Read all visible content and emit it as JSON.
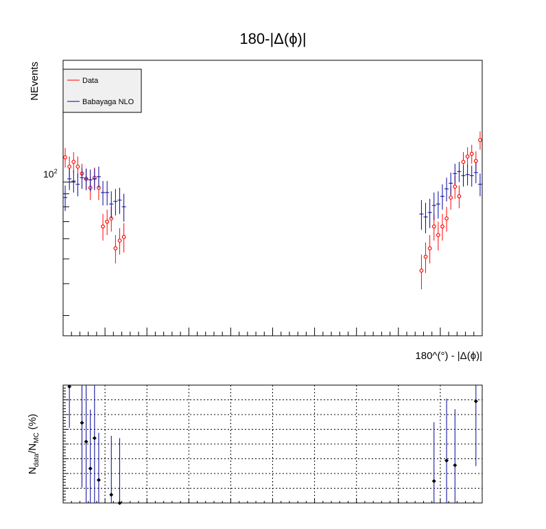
{
  "chart_data": [
    {
      "type": "scatter",
      "title": "180-|Δ(ϕ)|",
      "xlabel": "180^(°) - |Δ(ϕ)|",
      "ylabel": "NEvents",
      "xlim": [
        -5,
        5
      ],
      "ylim": [
        25,
        300
      ],
      "yscale": "log",
      "x_ticks": [
        "-5",
        "-4",
        "-3",
        "-2",
        "-1",
        "0",
        "1",
        "2",
        "3",
        "4",
        "5"
      ],
      "y_tick_label": "10",
      "y_tick_label_exp": "2",
      "grid": false,
      "legend_position": "top-left",
      "series": [
        {
          "name": "Data",
          "color": "#ff0000",
          "marker": "open-circle",
          "x": [
            -4.95,
            -4.85,
            -4.75,
            -4.65,
            -4.55,
            -4.45,
            -4.35,
            -4.25,
            -4.15,
            -4.05,
            -3.95,
            -3.85,
            -3.75,
            -3.65,
            -3.55,
            3.55,
            3.65,
            3.75,
            3.85,
            3.95,
            4.05,
            4.15,
            4.25,
            4.35,
            4.45,
            4.55,
            4.65,
            4.75,
            4.85,
            4.95
          ],
          "y": [
            125,
            115,
            120,
            115,
            108,
            103,
            95,
            104,
            95,
            67,
            70,
            72,
            55,
            59,
            61,
            45,
            51,
            55,
            67,
            62,
            67,
            72,
            87,
            96,
            88,
            120,
            126,
            129,
            121,
            146
          ],
          "yerr": [
            11,
            11,
            11,
            11,
            10,
            10,
            10,
            10,
            10,
            8,
            8,
            8,
            7,
            7,
            8,
            7,
            7,
            7,
            8,
            8,
            8,
            8,
            9,
            10,
            9,
            11,
            11,
            11,
            11,
            12
          ]
        },
        {
          "name": "Babayaga NLO",
          "color": "#000099",
          "marker": "cross",
          "x": [
            -4.95,
            -4.85,
            -4.75,
            -4.65,
            -4.55,
            -4.45,
            -4.35,
            -4.25,
            -4.15,
            -4.05,
            -3.95,
            -3.85,
            -3.75,
            -3.65,
            -3.55,
            3.55,
            3.65,
            3.75,
            3.85,
            3.95,
            4.05,
            4.15,
            4.25,
            4.35,
            4.45,
            4.55,
            4.65,
            4.75,
            4.85,
            4.95
          ],
          "y": [
            87,
            103,
            101,
            98,
            104,
            103,
            102,
            103,
            105,
            91,
            91,
            82,
            84,
            85,
            80,
            75,
            73,
            76,
            81,
            82,
            88,
            94,
            99,
            108,
            110,
            106,
            107,
            106,
            109,
            98
          ],
          "yerr": [
            10,
            10,
            10,
            10,
            10,
            10,
            10,
            10,
            10,
            10,
            10,
            10,
            10,
            10,
            10,
            10,
            10,
            10,
            10,
            10,
            10,
            10,
            10,
            10,
            10,
            10,
            10,
            10,
            10,
            10
          ]
        }
      ]
    },
    {
      "type": "scatter",
      "title": "",
      "xlabel": "",
      "ylabel": "N_data/N_MC (%)",
      "ylabel_main": "N",
      "ylabel_sub1": "data",
      "ylabel_mid": "/N",
      "ylabel_sub2": "MC",
      "ylabel_tail": " (%)",
      "xlim": [
        -5,
        5
      ],
      "ylim": [
        -20,
        20
      ],
      "x_ticks": [
        "-5",
        "-4",
        "-3",
        "-2",
        "-1",
        "0",
        "1",
        "2",
        "3",
        "4",
        "5"
      ],
      "y_ticks": [
        "-20",
        "-15",
        "-10",
        "-5",
        "0",
        "5",
        "10",
        "15",
        "20"
      ],
      "grid": true,
      "series": [
        {
          "name": "",
          "color": "#000000",
          "marker": "filled-diamond",
          "x": [
            -4.85,
            -4.55,
            -4.45,
            -4.35,
            -4.25,
            -4.15,
            -3.85,
            -3.65,
            3.85,
            4.15,
            4.35,
            4.85
          ],
          "y": [
            19.5,
            7.2,
            0.8,
            -8.3,
            2.0,
            -12.2,
            -17.2,
            -20.0,
            -12.6,
            -5.6,
            -7.2,
            14.5
          ],
          "yerr": [
            14,
            22,
            22,
            20,
            22,
            16,
            20,
            22,
            20,
            21,
            19,
            22
          ]
        }
      ]
    }
  ]
}
